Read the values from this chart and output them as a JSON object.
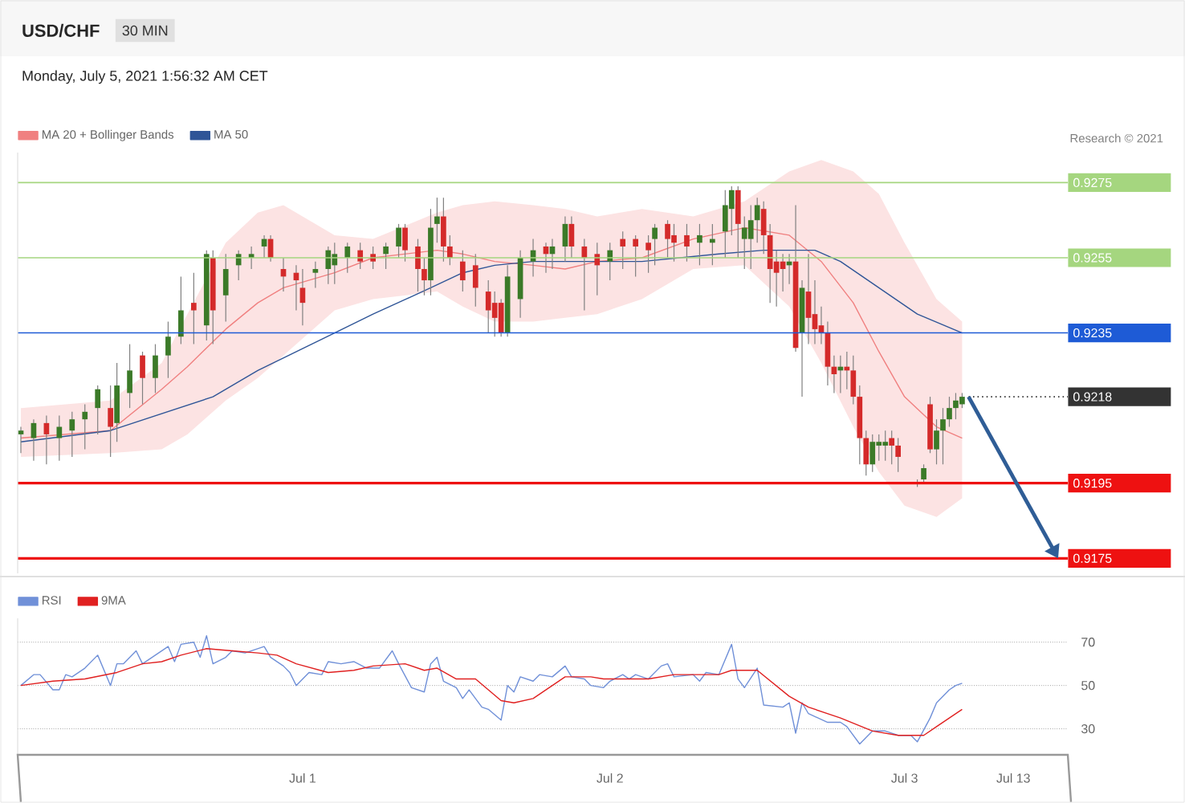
{
  "chart_data": [
    {
      "type": "candlestick",
      "title": "USD/CHF",
      "subtitle": "30 MIN",
      "annotations": [
        "Monday, July 5, 2021 1:56:32 AM CET",
        "Research © 2021"
      ],
      "categories": [
        null,
        null,
        null,
        null,
        null,
        null,
        null,
        null,
        null,
        null,
        null,
        null,
        null,
        null,
        null,
        null,
        null,
        null,
        null,
        null,
        null,
        null,
        null,
        null,
        null,
        null,
        null,
        null,
        null,
        null,
        null,
        null,
        null,
        null,
        null,
        null,
        null,
        null,
        null,
        null,
        null,
        null,
        null,
        null,
        null,
        null,
        null,
        null,
        null,
        null,
        null,
        null,
        null,
        null,
        null,
        null,
        null,
        null,
        null,
        null,
        null,
        null,
        null,
        null,
        null,
        null,
        null,
        null,
        null,
        null,
        null,
        null,
        null,
        null,
        null,
        null,
        null,
        null,
        null,
        null,
        null,
        null,
        null,
        null,
        null,
        null,
        null,
        null,
        null,
        null,
        null,
        null,
        null,
        null,
        null,
        null,
        null,
        null,
        null,
        null,
        null,
        null,
        null,
        null,
        null,
        null,
        null,
        null,
        null,
        null,
        null,
        null,
        null,
        null,
        null,
        null,
        null,
        null,
        null,
        null,
        null,
        null,
        null,
        null,
        null,
        null,
        null,
        null,
        null,
        null,
        null,
        null,
        null,
        null,
        null,
        null,
        null,
        null,
        null,
        null,
        null,
        null,
        null,
        null,
        null,
        null,
        null,
        null,
        null,
        null,
        null,
        null,
        null,
        null,
        null,
        null,
        null,
        null,
        null,
        null,
        null,
        null,
        null,
        null
      ],
      "ohlc": [
        [
          0.9208,
          0.921,
          0.9203,
          0.9209
        ],
        null,
        [
          0.9207,
          0.9212,
          0.9201,
          0.9211
        ],
        null,
        [
          0.9211,
          0.9213,
          0.92,
          0.9208
        ],
        null,
        [
          0.9207,
          0.9213,
          0.9201,
          0.921
        ],
        null,
        [
          0.9209,
          0.9214,
          0.9202,
          0.9212
        ],
        null,
        [
          0.9212,
          0.9216,
          0.9204,
          0.9214
        ],
        null,
        [
          0.9215,
          0.9221,
          0.9208,
          0.922
        ],
        null,
        [
          0.9215,
          0.9221,
          0.9202,
          0.921
        ],
        [
          0.9211,
          0.9227,
          0.9206,
          0.9221
        ],
        null,
        [
          0.9219,
          0.9232,
          0.9215,
          0.9225
        ],
        null,
        [
          0.9229,
          0.923,
          0.9216,
          0.9223
        ],
        null,
        [
          0.9223,
          0.9232,
          0.9219,
          0.9229
        ],
        null,
        [
          0.9229,
          0.9238,
          0.9223,
          0.9234
        ],
        null,
        [
          0.9234,
          0.925,
          0.9232,
          0.9241
        ],
        null,
        [
          0.9243,
          0.9251,
          0.9232,
          0.9241
        ],
        null,
        [
          0.9237,
          0.9257,
          0.9233,
          0.9256
        ],
        [
          0.9255,
          0.9257,
          0.9232,
          0.9241
        ],
        null,
        [
          0.9245,
          0.9256,
          0.9238,
          0.9252
        ],
        null,
        [
          0.9253,
          0.9257,
          0.9249,
          0.9256
        ],
        null,
        [
          0.9255,
          0.9258,
          0.9252,
          0.9256
        ],
        null,
        [
          0.9258,
          0.9261,
          0.9255,
          0.926
        ],
        [
          0.926,
          0.9261,
          0.9254,
          0.9255
        ],
        null,
        [
          0.9252,
          0.9255,
          0.9246,
          0.925
        ],
        null,
        [
          0.9251,
          0.9253,
          0.9241,
          0.9249
        ],
        [
          0.9247,
          0.9252,
          0.9237,
          0.9243
        ],
        null,
        [
          0.9251,
          0.9254,
          0.9247,
          0.9252
        ],
        null,
        [
          0.9252,
          0.9258,
          0.9248,
          0.9257
        ],
        [
          0.9253,
          0.9259,
          0.9248,
          0.9256
        ],
        null,
        [
          0.9255,
          0.9259,
          0.9251,
          0.9258
        ],
        null,
        [
          0.9257,
          0.9259,
          0.9252,
          0.9254
        ],
        null,
        [
          0.9256,
          0.9258,
          0.9252,
          0.9254
        ],
        null,
        [
          0.9256,
          0.9259,
          0.9252,
          0.9258
        ],
        null,
        [
          0.9258,
          0.9264,
          0.9255,
          0.9263
        ],
        [
          0.9263,
          0.9264,
          0.9254,
          0.9257
        ],
        null,
        [
          0.9258,
          0.926,
          0.9246,
          0.9252
        ],
        [
          0.9252,
          0.9255,
          0.9245,
          0.9249
        ],
        [
          0.9249,
          0.9268,
          0.9245,
          0.9263
        ],
        [
          0.9264,
          0.9271,
          0.9259,
          0.9266
        ],
        [
          0.9266,
          0.9271,
          0.9254,
          0.9258
        ],
        [
          0.9258,
          0.9261,
          0.9253,
          0.9255
        ],
        null,
        [
          0.9254,
          0.9257,
          0.9246,
          0.9249
        ],
        null,
        [
          0.9253,
          0.9256,
          0.9242,
          0.9247
        ],
        null,
        [
          0.9246,
          0.9249,
          0.9235,
          0.9241
        ],
        [
          0.9243,
          0.9246,
          0.9234,
          0.9239
        ],
        [
          0.9243,
          0.9244,
          0.9234,
          0.9235
        ],
        [
          0.9235,
          0.9253,
          0.9234,
          0.925
        ],
        null,
        [
          0.9244,
          0.9257,
          0.9239,
          0.9255
        ],
        null,
        [
          0.9254,
          0.926,
          0.925,
          0.9257
        ],
        null,
        [
          0.9258,
          0.9259,
          0.9251,
          0.9256
        ],
        [
          0.9256,
          0.926,
          0.9252,
          0.9258
        ],
        null,
        [
          0.9258,
          0.9266,
          0.9254,
          0.9264
        ],
        [
          0.9264,
          0.9266,
          0.9255,
          0.9258
        ],
        null,
        [
          0.9258,
          0.926,
          0.9241,
          0.9255
        ],
        null,
        [
          0.9256,
          0.9259,
          0.9245,
          0.9253
        ],
        null,
        [
          0.9254,
          0.9259,
          0.9249,
          0.9257
        ],
        null,
        [
          0.926,
          0.9262,
          0.9252,
          0.9258
        ],
        null,
        [
          0.926,
          0.9261,
          0.925,
          0.9258
        ],
        null,
        [
          0.9259,
          0.9261,
          0.9251,
          0.9257
        ],
        [
          0.926,
          0.9264,
          0.9253,
          0.9263
        ],
        null,
        [
          0.9264,
          0.9265,
          0.9255,
          0.926
        ],
        [
          0.9261,
          0.9264,
          0.9254,
          0.9259
        ],
        null,
        [
          0.9261,
          0.9264,
          0.9254,
          0.9258
        ],
        null,
        [
          0.9259,
          0.9264,
          0.9253,
          0.9261
        ],
        null,
        [
          0.9259,
          0.9264,
          0.9253,
          0.926
        ],
        null,
        [
          0.9262,
          0.9273,
          0.9255,
          0.9269
        ],
        [
          0.9268,
          0.9274,
          0.9261,
          0.9273
        ],
        [
          0.9273,
          0.9274,
          0.9255,
          0.9264
        ],
        [
          0.926,
          0.9266,
          0.9252,
          0.9263
        ],
        [
          0.926,
          0.9269,
          0.9252,
          0.9265
        ],
        [
          0.9265,
          0.9271,
          0.9259,
          0.9269
        ],
        [
          0.9268,
          0.927,
          0.9256,
          0.9261
        ],
        [
          0.9261,
          0.9264,
          0.9243,
          0.9252
        ],
        [
          0.9254,
          0.9257,
          0.9242,
          0.9251
        ],
        [
          0.9254,
          0.9256,
          0.9246,
          0.9252
        ],
        [
          0.9253,
          0.9256,
          0.9248,
          0.9254
        ],
        [
          0.9254,
          0.9269,
          0.923,
          0.9231
        ],
        [
          0.9235,
          0.9249,
          0.9218,
          0.9247
        ],
        [
          0.9246,
          0.9256,
          0.9232,
          0.9239
        ],
        [
          0.924,
          0.9249,
          0.9232,
          0.9236
        ],
        [
          0.9237,
          0.9242,
          0.9232,
          0.9235
        ],
        [
          0.9235,
          0.9238,
          0.9221,
          0.9226
        ],
        [
          0.9226,
          0.9229,
          0.9219,
          0.9224
        ],
        [
          0.9225,
          0.9229,
          0.9219,
          0.9226
        ],
        [
          0.9226,
          0.923,
          0.922,
          0.9225
        ],
        [
          0.9225,
          0.9229,
          0.9216,
          0.9218
        ],
        [
          0.9218,
          0.9221,
          0.92,
          0.9207
        ],
        [
          0.9207,
          0.9209,
          0.9197,
          0.92
        ],
        [
          0.92,
          0.9208,
          0.9198,
          0.9206
        ],
        [
          0.9205,
          0.9208,
          0.9201,
          0.9206
        ],
        [
          0.9205,
          0.9209,
          0.9201,
          0.9206
        ],
        [
          0.9207,
          0.9209,
          0.92,
          0.9205
        ],
        [
          0.9205,
          0.9207,
          0.9198,
          0.9202
        ],
        null,
        null,
        [
          0.9195,
          0.9196,
          0.9194,
          0.9195
        ],
        [
          0.9196,
          0.92,
          0.9195,
          0.9199
        ],
        [
          0.9216,
          0.9218,
          0.9203,
          0.9204
        ],
        [
          0.9204,
          0.9212,
          0.92,
          0.9209
        ],
        [
          0.9209,
          0.9215,
          0.92,
          0.9212
        ],
        [
          0.9212,
          0.9218,
          0.921,
          0.9215
        ],
        [
          0.9215,
          0.9219,
          0.9212,
          0.9217
        ],
        [
          0.9216,
          0.9219,
          0.9215,
          0.9218
        ],
        null,
        null,
        null,
        null,
        null,
        null,
        null,
        null,
        null,
        null,
        null,
        null,
        null,
        null,
        null,
        null
      ],
      "colors": [
        "#3b7a28",
        null,
        "#3b7a28",
        null,
        "#d42a2a",
        null,
        "#3b7a28",
        null,
        "#3b7a28",
        null,
        "#3b7a28",
        null,
        "#3b7a28",
        null,
        "#d42a2a",
        "#3b7a28",
        null,
        "#3b7a28",
        null,
        "#d42a2a",
        null,
        "#3b7a28",
        null,
        "#3b7a28",
        null,
        "#3b7a28",
        null,
        "#d42a2a",
        null,
        "#3b7a28",
        "#d42a2a",
        null,
        "#3b7a28",
        null,
        "#3b7a28",
        null,
        "#3b7a28",
        null,
        "#3b7a28",
        "#d42a2a",
        null,
        "#d42a2a",
        null,
        "#d42a2a",
        "#d42a2a",
        null,
        "#3b7a28",
        null,
        "#3b7a28",
        "#3b7a28",
        null,
        "#3b7a28",
        null,
        "#d42a2a",
        null,
        "#d42a2a",
        null,
        "#3b7a28",
        null,
        "#3b7a28",
        "#d42a2a",
        null,
        "#d42a2a",
        "#d42a2a",
        "#3b7a28",
        "#3b7a28",
        "#d42a2a",
        "#d42a2a",
        null,
        "#d42a2a",
        null,
        "#d42a2a",
        null,
        "#d42a2a",
        "#d42a2a",
        "#d42a2a",
        "#3b7a28",
        null,
        "#3b7a28",
        null,
        "#3b7a28",
        null,
        "#d42a2a",
        "#3b7a28",
        null,
        "#3b7a28",
        "#d42a2a",
        null,
        "#d42a2a",
        null,
        "#d42a2a",
        null,
        "#3b7a28",
        null,
        "#d42a2a",
        null,
        "#d42a2a",
        null,
        "#d42a2a",
        "#3b7a28",
        null,
        "#d42a2a",
        "#d42a2a",
        null,
        "#d42a2a",
        null,
        "#3b7a28",
        null,
        "#3b7a28",
        null,
        "#3b7a28",
        "#3b7a28",
        "#d42a2a",
        "#3b7a28",
        "#3b7a28",
        "#3b7a28",
        "#d42a2a",
        "#d42a2a",
        "#d42a2a",
        "#d42a2a",
        "#3b7a28",
        "#d42a2a",
        "#3b7a28",
        "#d42a2a",
        "#d42a2a",
        "#d42a2a",
        "#d42a2a",
        "#d42a2a",
        "#3b7a28",
        "#d42a2a",
        "#d42a2a",
        "#d42a2a",
        "#d42a2a",
        "#3b7a28",
        "#3b7a28",
        "#3b7a28",
        "#d42a2a",
        "#d42a2a",
        null,
        null,
        "#3b7a28",
        "#3b7a28",
        "#d42a2a",
        "#3b7a28",
        "#3b7a28",
        "#3b7a28",
        "#3b7a28",
        "#3b7a28",
        null,
        null,
        null,
        null,
        null,
        null,
        null,
        null,
        null,
        null,
        null,
        null,
        null,
        null,
        null,
        null
      ],
      "series": [
        {
          "type": "line",
          "name": "MA 20 + Bollinger Bands",
          "color": "#f08080",
          "values": [
            0.9207,
            null,
            null,
            null,
            null,
            null,
            null,
            null,
            null,
            null,
            null,
            null,
            null,
            null,
            0.9209,
            null,
            null,
            null,
            null,
            null,
            null,
            null,
            0.922,
            null,
            null,
            null,
            0.9226,
            null,
            null,
            null,
            null,
            null,
            0.9236,
            null,
            null,
            null,
            null,
            0.9243,
            null,
            null,
            null,
            0.9247,
            null,
            null,
            null,
            null,
            null,
            null,
            null,
            0.9251,
            null,
            null,
            null,
            null,
            null,
            0.9255,
            null,
            null,
            null,
            null,
            null,
            null,
            null,
            null,
            null,
            0.9257,
            null,
            null,
            null,
            0.9256,
            null,
            null,
            null,
            null,
            0.9254,
            null,
            null,
            null,
            null,
            null,
            0.9253,
            null,
            null,
            null,
            null,
            0.9252,
            null,
            null,
            null,
            null,
            0.9254,
            null,
            null,
            null,
            null,
            null,
            null,
            0.9255,
            null,
            null,
            null,
            null,
            null,
            null,
            null,
            0.926,
            null,
            null,
            null,
            null,
            null,
            null,
            null,
            0.9263,
            null,
            null,
            null,
            null,
            null,
            null,
            0.9261,
            null,
            null,
            null,
            null,
            0.9254,
            null,
            null,
            null,
            null,
            0.9243,
            null,
            null,
            null,
            0.923,
            null,
            null,
            null,
            0.9218,
            null,
            null,
            null,
            null,
            0.921,
            null,
            null,
            null,
            0.9207,
            null,
            null,
            null,
            null,
            null,
            null,
            null,
            null,
            null,
            null,
            null,
            null,
            null,
            null,
            null,
            null
          ],
          "upper": [
            0.9215,
            null,
            null,
            null,
            null,
            null,
            null,
            null,
            null,
            null,
            null,
            null,
            null,
            null,
            0.9217,
            null,
            null,
            null,
            null,
            null,
            null,
            null,
            0.9227,
            null,
            null,
            null,
            0.924,
            null,
            null,
            null,
            null,
            null,
            0.9259,
            null,
            null,
            null,
            null,
            0.9267,
            null,
            null,
            null,
            0.9269,
            null,
            null,
            null,
            null,
            null,
            null,
            null,
            0.9261,
            null,
            null,
            null,
            null,
            null,
            0.926,
            null,
            null,
            null,
            null,
            null,
            null,
            null,
            null,
            null,
            0.9267,
            null,
            null,
            null,
            0.9269,
            null,
            null,
            null,
            null,
            0.927,
            null,
            null,
            null,
            null,
            null,
            0.9269,
            null,
            null,
            null,
            null,
            0.9268,
            null,
            null,
            null,
            null,
            0.9266,
            null,
            null,
            null,
            null,
            null,
            null,
            0.9268,
            null,
            null,
            null,
            null,
            null,
            null,
            null,
            0.9266,
            null,
            null,
            null,
            null,
            null,
            null,
            null,
            0.927,
            null,
            null,
            null,
            null,
            null,
            null,
            0.9278,
            null,
            null,
            null,
            null,
            0.9281,
            null,
            null,
            null,
            null,
            0.9278,
            null,
            null,
            null,
            0.9272,
            null,
            null,
            null,
            0.9259,
            null,
            null,
            null,
            null,
            0.9244,
            null,
            null,
            null,
            0.9238,
            null,
            null,
            null,
            null,
            null,
            null,
            null,
            null,
            null,
            null,
            null,
            null,
            null,
            null,
            null,
            null
          ],
          "lower": [
            0.9202,
            null,
            null,
            null,
            null,
            null,
            null,
            null,
            null,
            null,
            null,
            null,
            null,
            null,
            0.9203,
            null,
            null,
            null,
            null,
            null,
            null,
            null,
            0.9204,
            null,
            null,
            null,
            0.9208,
            null,
            null,
            null,
            null,
            null,
            0.9217,
            null,
            null,
            null,
            null,
            0.9223,
            null,
            null,
            null,
            0.9229,
            null,
            null,
            null,
            null,
            null,
            null,
            null,
            0.9241,
            null,
            null,
            null,
            null,
            null,
            0.9244,
            null,
            null,
            null,
            null,
            null,
            null,
            null,
            null,
            null,
            0.9246,
            null,
            null,
            null,
            0.9242,
            null,
            null,
            null,
            null,
            0.9238,
            null,
            null,
            null,
            null,
            null,
            0.9238,
            null,
            null,
            null,
            null,
            0.9239,
            null,
            null,
            null,
            null,
            0.924,
            null,
            null,
            null,
            null,
            null,
            null,
            0.9244,
            null,
            null,
            null,
            null,
            null,
            null,
            null,
            0.9252,
            null,
            null,
            null,
            null,
            null,
            null,
            null,
            0.9253,
            null,
            null,
            null,
            null,
            null,
            null,
            0.9242,
            null,
            null,
            null,
            null,
            0.9227,
            null,
            null,
            null,
            null,
            0.921,
            null,
            null,
            null,
            0.9198,
            null,
            null,
            null,
            0.9189,
            null,
            null,
            null,
            null,
            0.9186,
            null,
            null,
            null,
            0.9191,
            null,
            null,
            null,
            null,
            null,
            null,
            null,
            null,
            null,
            null,
            null,
            null,
            null,
            null,
            null,
            null
          ]
        },
        {
          "type": "line",
          "name": "MA 50",
          "color": "#2f5597",
          "values": [
            0.9206,
            null,
            null,
            null,
            null,
            null,
            null,
            null,
            null,
            null,
            null,
            null,
            null,
            null,
            0.9209,
            null,
            null,
            null,
            null,
            null,
            null,
            null,
            null,
            null,
            null,
            null,
            null,
            null,
            null,
            null,
            0.9218,
            null,
            null,
            null,
            null,
            null,
            null,
            0.9225,
            null,
            null,
            null,
            null,
            null,
            null,
            null,
            null,
            null,
            null,
            null,
            0.9235,
            null,
            null,
            null,
            null,
            null,
            0.924,
            null,
            null,
            null,
            null,
            null,
            null,
            null,
            null,
            0.9247,
            null,
            null,
            null,
            null,
            0.9251,
            null,
            null,
            null,
            null,
            0.9253,
            null,
            null,
            null,
            null,
            null,
            0.9254,
            null,
            null,
            null,
            null,
            null,
            null,
            null,
            0.9254,
            null,
            null,
            null,
            null,
            null,
            null,
            null,
            null,
            0.9254,
            null,
            null,
            null,
            null,
            null,
            null,
            null,
            null,
            null,
            null,
            null,
            0.9256,
            null,
            null,
            null,
            null,
            null,
            null,
            0.9257,
            null,
            null,
            null,
            null,
            null,
            null,
            null,
            0.9257,
            null,
            null,
            null,
            0.9254,
            null,
            null,
            null,
            null,
            null,
            0.9247,
            null,
            null,
            null,
            null,
            null,
            0.924,
            null,
            null,
            null,
            null,
            null,
            null,
            0.9235,
            null,
            null,
            null,
            null,
            null,
            null,
            null,
            null,
            null,
            null,
            null,
            null,
            null,
            null,
            null,
            null
          ]
        }
      ],
      "ref_lines": [
        {
          "axis": "y",
          "value": 0.9275,
          "color": "#a5d67f",
          "line_style": "solid"
        },
        {
          "axis": "y",
          "value": 0.9255,
          "color": "#a5d67f",
          "line_style": "solid"
        },
        {
          "axis": "y",
          "value": 0.9235,
          "color": "#1e5bd6",
          "line_style": "solid"
        },
        {
          "axis": "y",
          "value": 0.9218,
          "color": "#333333",
          "line_style": "dotted"
        },
        {
          "axis": "y",
          "value": 0.9195,
          "color": "#ee1111",
          "line_style": "solid"
        },
        {
          "axis": "y",
          "value": 0.9175,
          "color": "#ee1111",
          "line_style": "solid"
        }
      ],
      "ylim": [
        0.9171,
        0.9283
      ],
      "yticks": [
        0.9175,
        0.9195,
        0.9218,
        0.9235,
        0.9255,
        0.9275
      ],
      "tick_labels": "y",
      "legend": "top left"
    },
    {
      "type": "line",
      "categories": [
        null,
        null,
        null,
        null,
        null,
        null,
        null,
        null,
        null,
        null,
        null,
        null,
        null,
        null,
        null,
        null,
        null,
        null,
        null,
        null,
        null,
        null,
        null,
        null,
        null,
        null,
        null,
        null,
        null,
        null,
        null,
        null,
        null,
        null,
        null,
        null,
        null,
        null,
        null,
        null,
        null,
        null,
        null,
        null,
        "Jul 1",
        null,
        null,
        null,
        null,
        null,
        null,
        null,
        null,
        null,
        null,
        null,
        null,
        null,
        null,
        null,
        null,
        null,
        null,
        null,
        null,
        null,
        null,
        null,
        null,
        null,
        null,
        null,
        null,
        null,
        null,
        null,
        null,
        null,
        null,
        null,
        null,
        null,
        null,
        null,
        null,
        null,
        null,
        null,
        null,
        null,
        null,
        null,
        "Jul 2",
        null,
        null,
        null,
        null,
        null,
        null,
        null,
        null,
        null,
        null,
        null,
        null,
        null,
        null,
        null,
        null,
        null,
        null,
        null,
        null,
        null,
        null,
        null,
        null,
        null,
        null,
        null,
        null,
        null,
        null,
        null,
        null,
        null,
        null,
        null,
        null,
        null,
        null,
        null,
        null,
        null,
        null,
        null,
        null,
        null,
        "Jul 3",
        null,
        null,
        null,
        null,
        null,
        null,
        null,
        null,
        null,
        null,
        null,
        null,
        null,
        null,
        null,
        null,
        "Jul 13",
        null,
        null,
        null,
        null,
        null,
        null,
        null,
        null
      ],
      "series": [
        {
          "name": "RSI",
          "color": "#7090d8",
          "values": [
            50,
            null,
            55,
            55,
            null,
            48,
            48,
            55,
            54,
            null,
            58,
            null,
            64,
            null,
            50,
            60,
            60,
            null,
            66,
            60,
            null,
            64,
            null,
            68,
            61,
            69,
            null,
            70,
            63,
            73,
            60,
            null,
            63,
            66,
            null,
            65,
            null,
            null,
            68,
            63,
            null,
            59,
            56,
            50,
            null,
            56,
            null,
            55,
            61,
            null,
            60,
            null,
            61,
            null,
            58,
            null,
            58,
            null,
            66,
            60,
            null,
            49,
            null,
            47,
            60,
            63,
            52,
            null,
            49,
            44,
            48,
            null,
            40,
            39,
            null,
            34,
            50,
            47,
            54,
            null,
            52,
            55,
            null,
            54,
            null,
            59,
            54,
            null,
            53,
            50,
            null,
            49,
            52,
            null,
            55,
            53,
            55,
            null,
            53,
            null,
            59,
            60,
            54,
            null,
            null,
            55,
            52,
            56,
            null,
            55,
            null,
            69,
            53,
            49,
            null,
            58,
            41,
            null,
            null,
            40,
            42,
            28,
            42,
            37,
            null,
            null,
            33,
            null,
            33,
            31,
            null,
            23,
            null,
            29,
            null,
            29,
            null,
            27,
            null,
            27,
            24,
            null,
            35,
            42,
            null,
            48,
            50,
            51,
            null,
            null,
            null,
            null,
            null,
            null,
            null,
            null,
            null,
            null,
            null,
            null,
            null,
            null,
            null,
            null
          ]
        },
        {
          "name": "9MA",
          "color": "#e02020",
          "values": [
            50,
            null,
            null,
            null,
            null,
            52,
            null,
            null,
            null,
            null,
            53,
            null,
            null,
            null,
            null,
            56,
            null,
            null,
            null,
            60,
            null,
            null,
            61,
            null,
            null,
            64,
            null,
            null,
            null,
            67,
            null,
            null,
            null,
            66,
            null,
            null,
            null,
            65,
            null,
            null,
            64,
            null,
            null,
            60,
            null,
            null,
            null,
            null,
            56,
            null,
            null,
            null,
            57,
            null,
            null,
            59,
            null,
            null,
            null,
            null,
            60,
            null,
            null,
            57,
            null,
            58,
            null,
            null,
            53,
            null,
            null,
            53,
            null,
            null,
            null,
            43,
            null,
            42,
            null,
            null,
            44,
            null,
            null,
            null,
            null,
            54,
            null,
            null,
            null,
            54,
            null,
            53,
            null,
            null,
            null,
            null,
            null,
            null,
            53,
            null,
            null,
            null,
            55,
            null,
            null,
            null,
            null,
            null,
            null,
            55,
            null,
            57,
            null,
            null,
            null,
            57,
            null,
            null,
            null,
            null,
            45,
            null,
            null,
            40,
            null,
            null,
            null,
            null,
            35,
            null,
            null,
            null,
            null,
            29,
            null,
            null,
            null,
            27,
            null,
            null,
            null,
            27,
            null,
            31,
            null,
            null,
            null,
            39,
            null,
            null,
            null,
            null,
            null,
            null,
            null,
            null,
            null,
            null,
            null,
            null,
            null,
            null,
            null,
            null
          ]
        }
      ],
      "ylim": [
        18,
        81
      ],
      "yticks": [
        30,
        50,
        70
      ],
      "grid": "y",
      "legend": "top left"
    }
  ]
}
